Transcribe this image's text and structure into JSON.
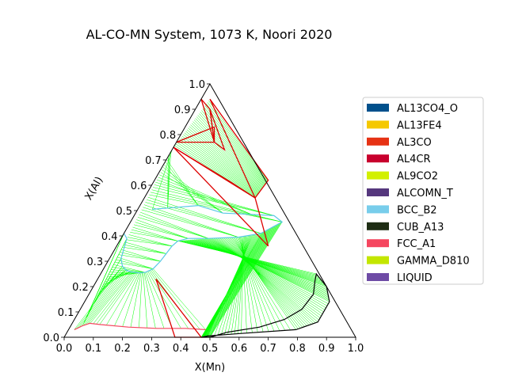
{
  "chart_data": {
    "type": "ternary",
    "title": "AL-CO-MN System, 1073 K, Noori 2020",
    "xlabel": "X(Mn)",
    "ylabel": "X(Al)",
    "xlim": [
      0,
      1
    ],
    "ylim": [
      0,
      1
    ],
    "x_ticks": [
      "0.0",
      "0.1",
      "0.2",
      "0.3",
      "0.4",
      "0.5",
      "0.6",
      "0.7",
      "0.8",
      "0.9",
      "1.0"
    ],
    "y_ticks": [
      "0.0",
      "0.1",
      "0.2",
      "0.3",
      "0.4",
      "0.5",
      "0.6",
      "0.7",
      "0.8",
      "0.9",
      "1.0"
    ],
    "legend_position": "right",
    "legend": [
      {
        "name": "AL13CO4_O",
        "color": "#00508c"
      },
      {
        "name": "AL13FE4",
        "color": "#f5c800"
      },
      {
        "name": "AL3CO",
        "color": "#e63214"
      },
      {
        "name": "AL4CR",
        "color": "#c8002d"
      },
      {
        "name": "AL9CO2",
        "color": "#d2f000"
      },
      {
        "name": "ALCOMN_T",
        "color": "#55377d"
      },
      {
        "name": "BCC_B2",
        "color": "#78cdeb"
      },
      {
        "name": "CUB_A13",
        "color": "#1e2d14"
      },
      {
        "name": "FCC_A1",
        "color": "#f5465f"
      },
      {
        "name": "GAMMA_D810",
        "color": "#c3e600"
      },
      {
        "name": "LIQUID",
        "color": "#6e4ba5"
      }
    ],
    "tie_line_color": "#00ff00",
    "three_phase_color": "#dd0000",
    "bcc_b2_boundary": [
      [
        0.0,
        0.41
      ],
      [
        0.02,
        0.39
      ],
      [
        0.04,
        0.31
      ],
      [
        0.06,
        0.28
      ],
      [
        0.08,
        0.265
      ],
      [
        0.1,
        0.258
      ],
      [
        0.13,
        0.254
      ],
      [
        0.15,
        0.256
      ],
      [
        0.17,
        0.27
      ],
      [
        0.18,
        0.3
      ],
      [
        0.185,
        0.33
      ],
      [
        0.19,
        0.36
      ],
      [
        0.2,
        0.38
      ],
      [
        0.23,
        0.39
      ],
      [
        0.3,
        0.39
      ],
      [
        0.4,
        0.395
      ],
      [
        0.47,
        0.41
      ],
      [
        0.52,
        0.455
      ],
      [
        0.48,
        0.48
      ],
      [
        0.4,
        0.485
      ],
      [
        0.3,
        0.49
      ],
      [
        0.2,
        0.52
      ],
      [
        0.1,
        0.51
      ],
      [
        0.05,
        0.505
      ]
    ],
    "cub_a13_region": [
      [
        0.74,
        0.25
      ],
      [
        0.8,
        0.2
      ],
      [
        0.84,
        0.14
      ],
      [
        0.84,
        0.06
      ],
      [
        0.78,
        0.03
      ],
      [
        0.6,
        0.015
      ],
      [
        0.49,
        0.005
      ],
      [
        0.47,
        0.0
      ],
      [
        0.48,
        0.0
      ],
      [
        0.5,
        0.0
      ],
      [
        0.55,
        0.02
      ],
      [
        0.65,
        0.04
      ],
      [
        0.72,
        0.07
      ],
      [
        0.76,
        0.11
      ],
      [
        0.77,
        0.17
      ],
      [
        0.75,
        0.22
      ]
    ],
    "fcc_a1_boundary": [
      [
        0.02,
        0.03
      ],
      [
        0.04,
        0.045
      ],
      [
        0.06,
        0.055
      ],
      [
        0.1,
        0.05
      ],
      [
        0.2,
        0.04
      ],
      [
        0.3,
        0.035
      ],
      [
        0.4,
        0.035
      ],
      [
        0.47,
        0.03
      ]
    ],
    "three_phase_triangles": [
      [
        [
          0.0,
          0.75
        ],
        [
          0.27,
          0.61
        ],
        [
          0.38,
          0.55
        ]
      ],
      [
        [
          0.0,
          0.75
        ],
        [
          0.52,
          0.36
        ],
        [
          0.38,
          0.55
        ]
      ],
      [
        [
          0.0,
          0.94
        ],
        [
          0.05,
          0.9
        ],
        [
          0.13,
          0.77
        ]
      ],
      [
        [
          0.05,
          0.9
        ],
        [
          0.18,
          0.74
        ],
        [
          0.13,
          0.77
        ]
      ],
      [
        [
          0.0,
          0.77
        ],
        [
          0.1,
          0.83
        ],
        [
          0.13,
          0.77
        ]
      ],
      [
        [
          0.03,
          0.94
        ],
        [
          0.39,
          0.62
        ],
        [
          0.38,
          0.55
        ]
      ],
      [
        [
          0.2,
          0.23
        ],
        [
          0.38,
          0.0
        ],
        [
          0.47,
          0.0
        ]
      ]
    ]
  }
}
